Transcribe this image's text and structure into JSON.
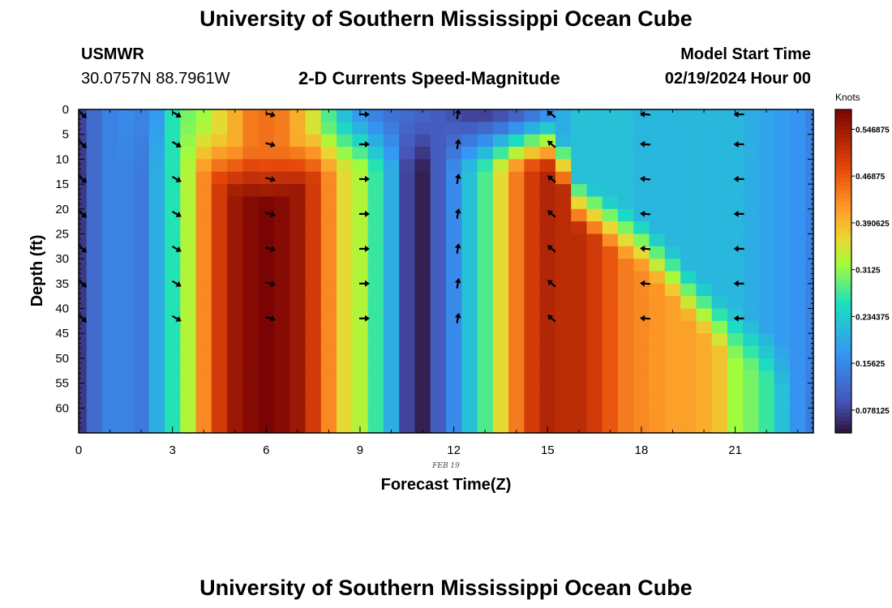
{
  "page": {
    "title_top": "University of Southern Mississippi Ocean Cube",
    "title_bottom": "University of Southern Mississippi Ocean Cube",
    "station_id": "USMWR",
    "coords": "30.0757N  88.7961W",
    "subtitle": "2-D Currents Speed-Magnitude",
    "model_label": "Model Start Time",
    "model_time": "02/19/2024 Hour 00"
  },
  "chart_data": {
    "type": "heatmap",
    "title": "2-D Currents Speed-Magnitude",
    "xlabel": "Forecast Time(Z)",
    "ylabel": "Depth (ft)",
    "date_label": "FEB 19",
    "xlim": [
      0,
      23.5
    ],
    "ylim": [
      0,
      65
    ],
    "x_ticks": [
      0,
      3,
      6,
      9,
      12,
      15,
      18,
      21
    ],
    "y_ticks": [
      0,
      5,
      10,
      15,
      20,
      25,
      30,
      35,
      40,
      45,
      50,
      55,
      60
    ],
    "colorbar": {
      "title": "Knots",
      "vmin": 0.04,
      "vmax": 0.58,
      "ticks": [
        "0.546875",
        "0.46875",
        "0.390625",
        "0.3125",
        "0.234375",
        "0.15625",
        "0.078125"
      ],
      "tick_values": [
        0.546875,
        0.46875,
        0.390625,
        0.3125,
        0.234375,
        0.15625,
        0.078125
      ]
    },
    "hours": [
      0,
      0.5,
      1,
      1.5,
      2,
      2.5,
      3,
      3.5,
      4,
      4.5,
      5,
      5.5,
      6,
      6.5,
      7,
      7.5,
      8,
      8.5,
      9,
      9.5,
      10,
      10.5,
      11,
      11.5,
      12,
      12.5,
      13,
      13.5,
      14,
      14.5,
      15,
      15.5,
      16,
      16.5,
      17,
      17.5,
      18,
      18.5,
      19,
      19.5,
      20,
      20.5,
      21,
      21.5,
      22,
      22.5,
      23,
      23.5
    ],
    "speed_surface": [
      0.08,
      0.12,
      0.15,
      0.16,
      0.15,
      0.18,
      0.26,
      0.3,
      0.32,
      0.36,
      0.4,
      0.44,
      0.45,
      0.44,
      0.4,
      0.35,
      0.28,
      0.22,
      0.18,
      0.15,
      0.13,
      0.12,
      0.11,
      0.1,
      0.09,
      0.08,
      0.08,
      0.09,
      0.11,
      0.14,
      0.17,
      0.2,
      0.22,
      0.22,
      0.22,
      0.22,
      0.21,
      0.21,
      0.21,
      0.21,
      0.21,
      0.21,
      0.21,
      0.2,
      0.19,
      0.18,
      0.17,
      0.15
    ],
    "speed_bottom": [
      0.07,
      0.12,
      0.15,
      0.15,
      0.14,
      0.2,
      0.26,
      0.33,
      0.43,
      0.5,
      0.55,
      0.57,
      0.58,
      0.57,
      0.55,
      0.5,
      0.43,
      0.36,
      0.33,
      0.27,
      0.2,
      0.08,
      0.05,
      0.1,
      0.16,
      0.22,
      0.28,
      0.36,
      0.44,
      0.5,
      0.53,
      0.52,
      0.52,
      0.5,
      0.47,
      0.44,
      0.43,
      0.42,
      0.41,
      0.41,
      0.4,
      0.38,
      0.32,
      0.3,
      0.27,
      0.22,
      0.17,
      0.14
    ],
    "surface_layer_depth": [
      2,
      2,
      2,
      2,
      2,
      2,
      2,
      2,
      3,
      5,
      7,
      8,
      9,
      8,
      6,
      4,
      3,
      2,
      2,
      2,
      2,
      2,
      2,
      2,
      2,
      2,
      2,
      2,
      2,
      2,
      2,
      6,
      14,
      16,
      18,
      20,
      22,
      25,
      28,
      32,
      35,
      38,
      40,
      42,
      44,
      46,
      48,
      50
    ],
    "vector_rows": [
      1,
      7,
      14,
      21,
      28,
      35,
      42
    ],
    "vectors": [
      {
        "hour": 0,
        "direction": "SE",
        "angle": 135
      },
      {
        "hour": 3,
        "direction": "SE",
        "angle": 120
      },
      {
        "hour": 6,
        "direction": "E",
        "angle": 105
      },
      {
        "hour": 9,
        "direction": "E",
        "angle": 90
      },
      {
        "hour": 12,
        "direction": "N",
        "angle": 10
      },
      {
        "hour": 15,
        "direction": "NW",
        "angle": 310
      },
      {
        "hour": 18,
        "direction": "W",
        "angle": 275
      },
      {
        "hour": 21,
        "direction": "W",
        "angle": 270
      }
    ],
    "surface_speed_at_hour_6": 0.45,
    "bottom_speed_at_hour_6": 0.58
  }
}
